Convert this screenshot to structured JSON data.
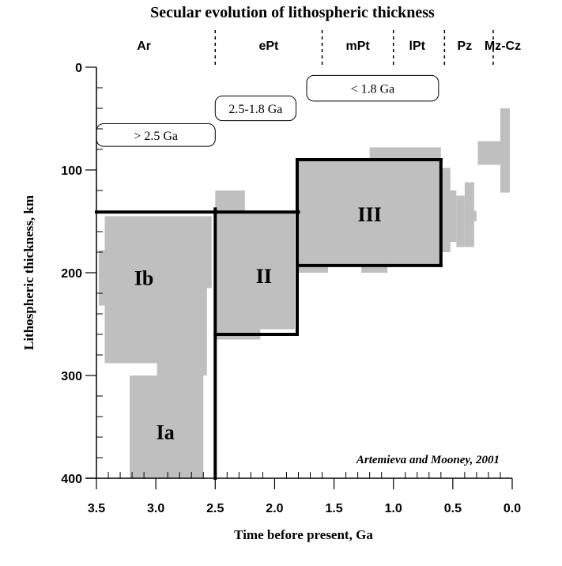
{
  "chart_data": {
    "type": "area",
    "title": "Secular evolution of lithospheric thickness",
    "xlabel": "Time before present, Ga",
    "ylabel": "Lithospheric thickness, km",
    "xlim": [
      3.5,
      0.0
    ],
    "ylim": [
      0,
      400
    ],
    "x_ticks": [
      {
        "v": 3.5,
        "label": "3.5"
      },
      {
        "v": 3.0,
        "label": "3.0"
      },
      {
        "v": 2.5,
        "label": "2.5"
      },
      {
        "v": 2.0,
        "label": "2.0"
      },
      {
        "v": 1.5,
        "label": "1.5"
      },
      {
        "v": 1.0,
        "label": "1.0"
      },
      {
        "v": 0.5,
        "label": "0.5"
      },
      {
        "v": 0.0,
        "label": "0.0"
      }
    ],
    "y_ticks": [
      {
        "v": 0,
        "label": "0"
      },
      {
        "v": 100,
        "label": "100"
      },
      {
        "v": 200,
        "label": "200"
      },
      {
        "v": 300,
        "label": "300"
      },
      {
        "v": 400,
        "label": "400"
      }
    ],
    "eras": [
      {
        "label": "Ar",
        "x": 3.1
      },
      {
        "label": "ePt",
        "x": 2.05
      },
      {
        "label": "mPt",
        "x": 1.3
      },
      {
        "label": "lPt",
        "x": 0.8
      },
      {
        "label": "Pz",
        "x": 0.4
      },
      {
        "label": "Mz-Cz",
        "x": 0.08
      }
    ],
    "era_boundaries": [
      2.5,
      1.6,
      1.0,
      0.57,
      0.16
    ],
    "age_boxes": [
      {
        "label": "> 2.5 Ga",
        "x1": 3.5,
        "x2": 2.5,
        "y1": 55,
        "y2": 77
      },
      {
        "label": "2.5-1.8 Ga",
        "x1": 2.5,
        "x2": 1.82,
        "y1": 28,
        "y2": 52
      },
      {
        "label": "< 1.8 Ga",
        "x1": 1.73,
        "x2": 0.62,
        "y1": 8,
        "y2": 33
      }
    ],
    "data_blocks": [
      {
        "x1": 3.22,
        "x2": 2.6,
        "y1": 300,
        "y2": 400
      },
      {
        "x1": 3.43,
        "x2": 2.62,
        "y1": 145,
        "y2": 288
      },
      {
        "x1": 3.48,
        "x2": 3.42,
        "y1": 178,
        "y2": 232
      },
      {
        "x1": 2.99,
        "x2": 2.57,
        "y1": 145,
        "y2": 300
      },
      {
        "x1": 2.6,
        "x2": 2.53,
        "y1": 145,
        "y2": 215
      },
      {
        "x1": 2.5,
        "x2": 2.25,
        "y1": 120,
        "y2": 140
      },
      {
        "x1": 2.5,
        "x2": 1.83,
        "y1": 140,
        "y2": 255
      },
      {
        "x1": 2.5,
        "x2": 2.12,
        "y1": 250,
        "y2": 265
      },
      {
        "x1": 1.82,
        "x2": 0.6,
        "y1": 90,
        "y2": 192
      },
      {
        "x1": 1.82,
        "x2": 1.55,
        "y1": 190,
        "y2": 200
      },
      {
        "x1": 1.2,
        "x2": 0.6,
        "y1": 78,
        "y2": 92
      },
      {
        "x1": 1.27,
        "x2": 1.05,
        "y1": 190,
        "y2": 200
      },
      {
        "x1": 0.6,
        "x2": 0.52,
        "y1": 98,
        "y2": 180
      },
      {
        "x1": 0.53,
        "x2": 0.47,
        "y1": 120,
        "y2": 170
      },
      {
        "x1": 0.47,
        "x2": 0.4,
        "y1": 125,
        "y2": 175
      },
      {
        "x1": 0.4,
        "x2": 0.32,
        "y1": 112,
        "y2": 175
      },
      {
        "x1": 0.35,
        "x2": 0.3,
        "y1": 140,
        "y2": 150
      },
      {
        "x1": 0.29,
        "x2": 0.1,
        "y1": 72,
        "y2": 95
      },
      {
        "x1": 0.1,
        "x2": 0.02,
        "y1": 40,
        "y2": 122
      }
    ],
    "outline_segments": [
      [
        [
          3.5,
          141
        ],
        [
          1.8,
          141
        ]
      ],
      [
        [
          2.5,
          138
        ],
        [
          2.5,
          400
        ]
      ],
      [
        [
          2.5,
          260
        ],
        [
          1.81,
          260
        ]
      ],
      [
        [
          1.81,
          90
        ],
        [
          1.81,
          260
        ]
      ],
      [
        [
          1.81,
          90
        ],
        [
          0.6,
          90
        ]
      ],
      [
        [
          0.6,
          90
        ],
        [
          0.6,
          193
        ]
      ],
      [
        [
          1.81,
          193
        ],
        [
          0.6,
          193
        ]
      ]
    ],
    "region_labels": [
      {
        "label": "Ib",
        "x": 3.1,
        "y": 205
      },
      {
        "label": "II",
        "x": 2.09,
        "y": 203
      },
      {
        "label": "III",
        "x": 1.2,
        "y": 143
      },
      {
        "label": "Ia",
        "x": 2.92,
        "y": 355
      }
    ],
    "credit": "Artemieva and Mooney, 2001",
    "grid": false,
    "data_color": "#bfbfbf",
    "outline_color": "#000000"
  }
}
